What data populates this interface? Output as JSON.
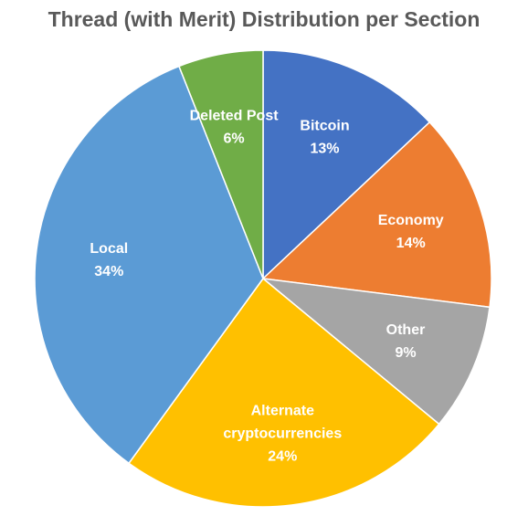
{
  "chart_data": {
    "type": "pie",
    "title": "Thread (with Merit) Distribution per Section",
    "slices": [
      {
        "name": "Bitcoin",
        "label_lines": [
          "Bitcoin"
        ],
        "value": 13,
        "pct_label": "13%",
        "color": "#4472C4"
      },
      {
        "name": "Economy",
        "label_lines": [
          "Economy"
        ],
        "value": 14,
        "pct_label": "14%",
        "color": "#ED7D31"
      },
      {
        "name": "Other",
        "label_lines": [
          "Other"
        ],
        "value": 9,
        "pct_label": "9%",
        "color": "#A5A5A5"
      },
      {
        "name": "Alternate cryptocurrencies",
        "label_lines": [
          "Alternate",
          "cryptocurrencies"
        ],
        "value": 24,
        "pct_label": "24%",
        "color": "#FFC000"
      },
      {
        "name": "Local",
        "label_lines": [
          "Local"
        ],
        "value": 34,
        "pct_label": "34%",
        "color": "#5B9BD5"
      },
      {
        "name": "Deleted Post",
        "label_lines": [
          "Deleted Post"
        ],
        "value": 6,
        "pct_label": "6%",
        "color": "#70AD47"
      }
    ],
    "legend": "none"
  }
}
